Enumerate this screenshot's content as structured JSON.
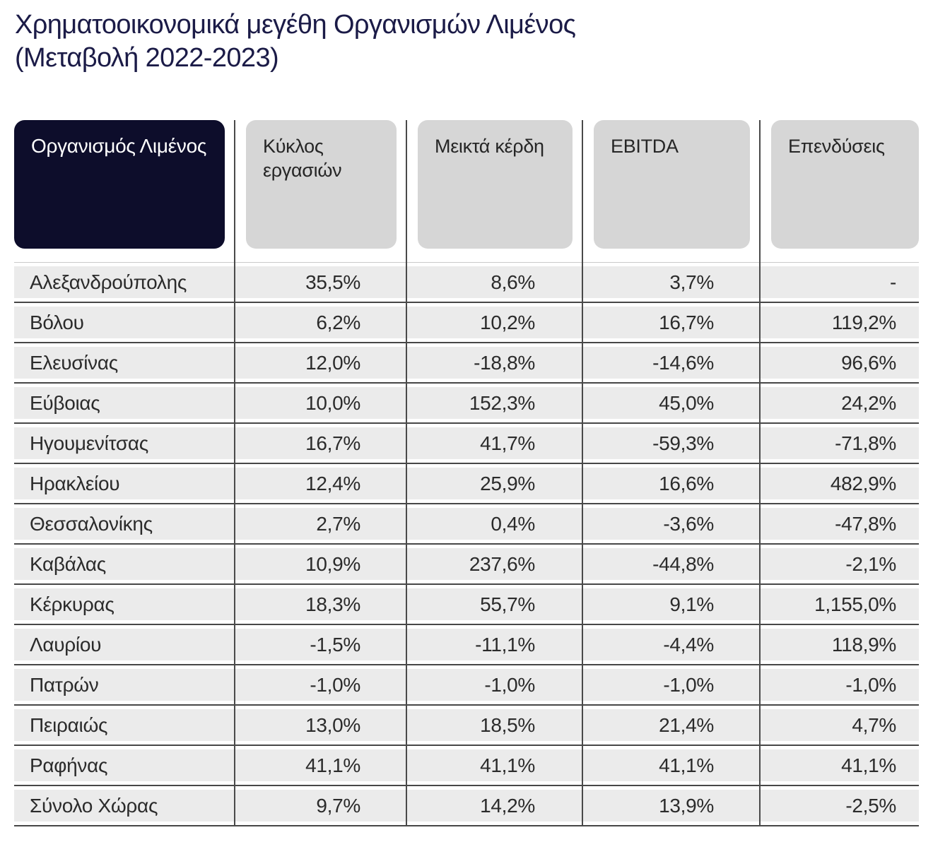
{
  "title": {
    "line1": "Χρηματοοικονομικά μεγέθη Οργανισμών Λιμένος",
    "line2": "(Μεταβολή 2022-2023)"
  },
  "chart_data": {
    "type": "table",
    "title": "Χρηματοοικονομικά μεγέθη Οργανισμών Λιμένος (Μεταβολή 2022-2023)",
    "columns": [
      "Οργανισμός Λιμένος",
      "Κύκλος εργασιών",
      "Μεικτά κέρδη",
      "EBITDA",
      "Επενδύσεις"
    ],
    "rows": [
      {
        "name": "Αλεξανδρούπολης",
        "values": [
          "35,5%",
          "8,6%",
          "3,7%",
          "-"
        ]
      },
      {
        "name": "Βόλου",
        "values": [
          "6,2%",
          "10,2%",
          "16,7%",
          "119,2%"
        ]
      },
      {
        "name": "Ελευσίνας",
        "values": [
          "12,0%",
          "-18,8%",
          "-14,6%",
          "96,6%"
        ]
      },
      {
        "name": "Εύβοιας",
        "values": [
          "10,0%",
          "152,3%",
          "45,0%",
          "24,2%"
        ]
      },
      {
        "name": "Ηγουμενίτσας",
        "values": [
          "16,7%",
          "41,7%",
          "-59,3%",
          "-71,8%"
        ]
      },
      {
        "name": "Ηρακλείου",
        "values": [
          "12,4%",
          "25,9%",
          "16,6%",
          "482,9%"
        ]
      },
      {
        "name": "Θεσσαλονίκης",
        "values": [
          "2,7%",
          "0,4%",
          "-3,6%",
          "-47,8%"
        ]
      },
      {
        "name": "Καβάλας",
        "values": [
          "10,9%",
          "237,6%",
          "-44,8%",
          "-2,1%"
        ]
      },
      {
        "name": "Κέρκυρας",
        "values": [
          "18,3%",
          "55,7%",
          "9,1%",
          "1,155,0%"
        ]
      },
      {
        "name": "Λαυρίου",
        "values": [
          "-1,5%",
          "-11,1%",
          "-4,4%",
          "118,9%"
        ]
      },
      {
        "name": "Πατρών",
        "values": [
          "-1,0%",
          "-1,0%",
          "-1,0%",
          "-1,0%"
        ]
      },
      {
        "name": "Πειραιώς",
        "values": [
          "13,0%",
          "18,5%",
          "21,4%",
          "4,7%"
        ]
      },
      {
        "name": "Ραφήνας",
        "values": [
          "41,1%",
          "41,1%",
          "41,1%",
          "41,1%"
        ]
      },
      {
        "name": "Σύνολο Χώρας",
        "values": [
          "9,7%",
          "14,2%",
          "13,9%",
          "-2,5%"
        ]
      }
    ]
  },
  "colors": {
    "title_text": "#1B1B47",
    "header_dark_bg": "#0D0D2B",
    "header_dark_text": "#FFFFFF",
    "header_gray_bg": "#D6D6D6",
    "row_bg": "#EBEBEB",
    "rule_dark": "#4A4A4A",
    "rule_light": "#C9C9C9",
    "cell_text": "#2B2B2B"
  }
}
